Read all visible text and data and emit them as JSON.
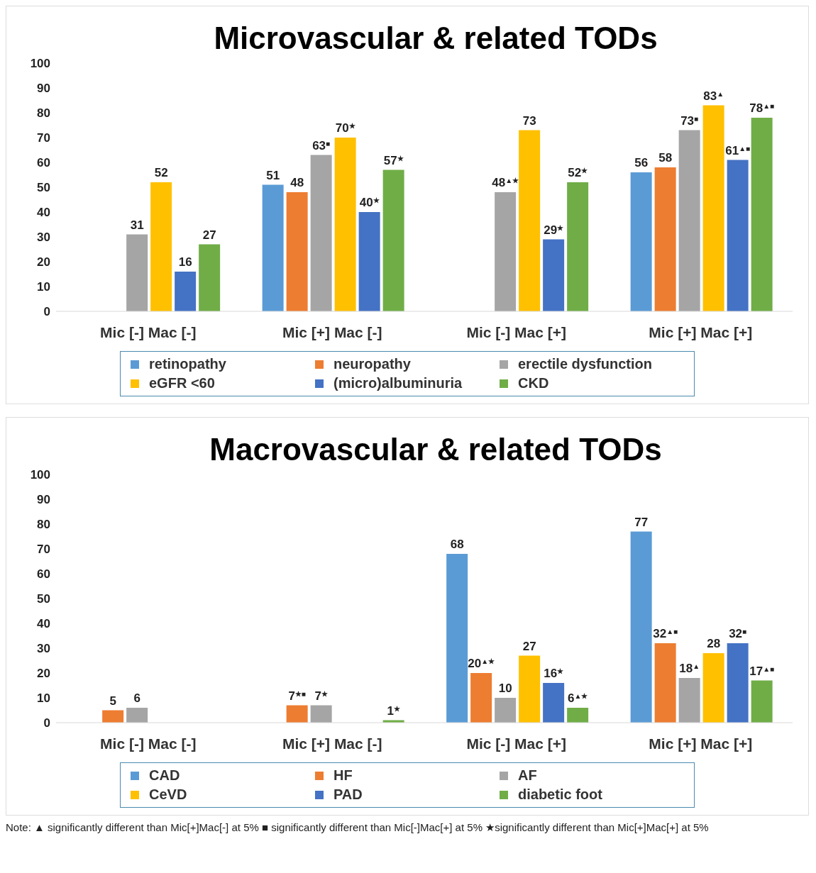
{
  "chart_data": [
    {
      "type": "bar",
      "title": "Microvascular & related TODs",
      "categories": [
        "Mic [-] Mac [-]",
        "Mic [+] Mac [-]",
        "Mic [-] Mac [+]",
        "Mic [+] Mac [+]"
      ],
      "ylim": [
        0,
        100
      ],
      "yticks": [
        0,
        10,
        20,
        30,
        40,
        50,
        60,
        70,
        80,
        90,
        100
      ],
      "grid": false,
      "legend": "bottom",
      "series": [
        {
          "name": "retinopathy",
          "color": "#5b9bd5",
          "values": [
            null,
            51,
            null,
            56
          ],
          "value_labels": [
            null,
            "51",
            null,
            "56"
          ]
        },
        {
          "name": "neuropathy",
          "color": "#ed7d31",
          "values": [
            null,
            48,
            null,
            58
          ],
          "value_labels": [
            null,
            "48",
            null,
            "58"
          ]
        },
        {
          "name": "erectile dysfunction",
          "color": "#a5a5a5",
          "values": [
            31,
            63,
            48,
            73
          ],
          "value_labels": [
            "31",
            "63$^{■}$",
            "48$^{▲★}$",
            "73$^{■}$"
          ]
        },
        {
          "name": "eGFR <60",
          "color": "#ffc000",
          "values": [
            52,
            70,
            73,
            83
          ],
          "value_labels": [
            "52",
            "70$^{★}$",
            "73",
            "83$^{▲}$"
          ]
        },
        {
          "name": "(micro)albuminuria",
          "color": "#4472c4",
          "values": [
            16,
            40,
            29,
            61
          ],
          "value_labels": [
            "16",
            "40$^{★}$",
            "29$^{★}$",
            "61$^{▲■}$"
          ]
        },
        {
          "name": "CKD",
          "color": "#70ad47",
          "values": [
            27,
            57,
            52,
            78
          ],
          "value_labels": [
            "27",
            "57$^{★}$",
            "52$^{★}$",
            "78$^{▲■}$"
          ]
        }
      ]
    },
    {
      "type": "bar",
      "title": "Macrovascular & related TODs",
      "categories": [
        "Mic [-] Mac [-]",
        "Mic [+] Mac [-]",
        "Mic [-] Mac [+]",
        "Mic [+] Mac [+]"
      ],
      "ylim": [
        0,
        100
      ],
      "yticks": [
        0,
        10,
        20,
        30,
        40,
        50,
        60,
        70,
        80,
        90,
        100
      ],
      "grid": false,
      "legend": "bottom",
      "series": [
        {
          "name": "CAD",
          "color": "#5b9bd5",
          "values": [
            null,
            null,
            68,
            77
          ],
          "value_labels": [
            null,
            null,
            "68",
            "77"
          ]
        },
        {
          "name": "HF",
          "color": "#ed7d31",
          "values": [
            5,
            7,
            20,
            32
          ],
          "value_labels": [
            "5",
            "7$^{★■}$",
            "20$^{▲★}$",
            "32$^{▲■}$"
          ]
        },
        {
          "name": "AF",
          "color": "#a5a5a5",
          "values": [
            6,
            7,
            10,
            18
          ],
          "value_labels": [
            "6",
            "7$^{★}$",
            "10",
            "18$^{▲}$"
          ]
        },
        {
          "name": "CeVD",
          "color": "#ffc000",
          "values": [
            null,
            null,
            27,
            28
          ],
          "value_labels": [
            null,
            null,
            "27",
            "28"
          ]
        },
        {
          "name": "PAD",
          "color": "#4472c4",
          "values": [
            null,
            null,
            16,
            32
          ],
          "value_labels": [
            null,
            null,
            "16$^{★}$",
            "32$^{■}$"
          ]
        },
        {
          "name": "diabetic foot",
          "color": "#70ad47",
          "values": [
            null,
            1,
            6,
            17
          ],
          "value_labels": [
            null,
            "1$^{★}$",
            "6$^{▲★}$",
            "17$^{▲■}$"
          ]
        }
      ],
      "annotations": [
        "Note: ▲ significantly different than Mic[+]Mac[-] at 5% ■ significantly different than Mic[-]Mac[+] at 5% ★significantly different than Mic[+]Mac[+] at 5%"
      ]
    }
  ]
}
